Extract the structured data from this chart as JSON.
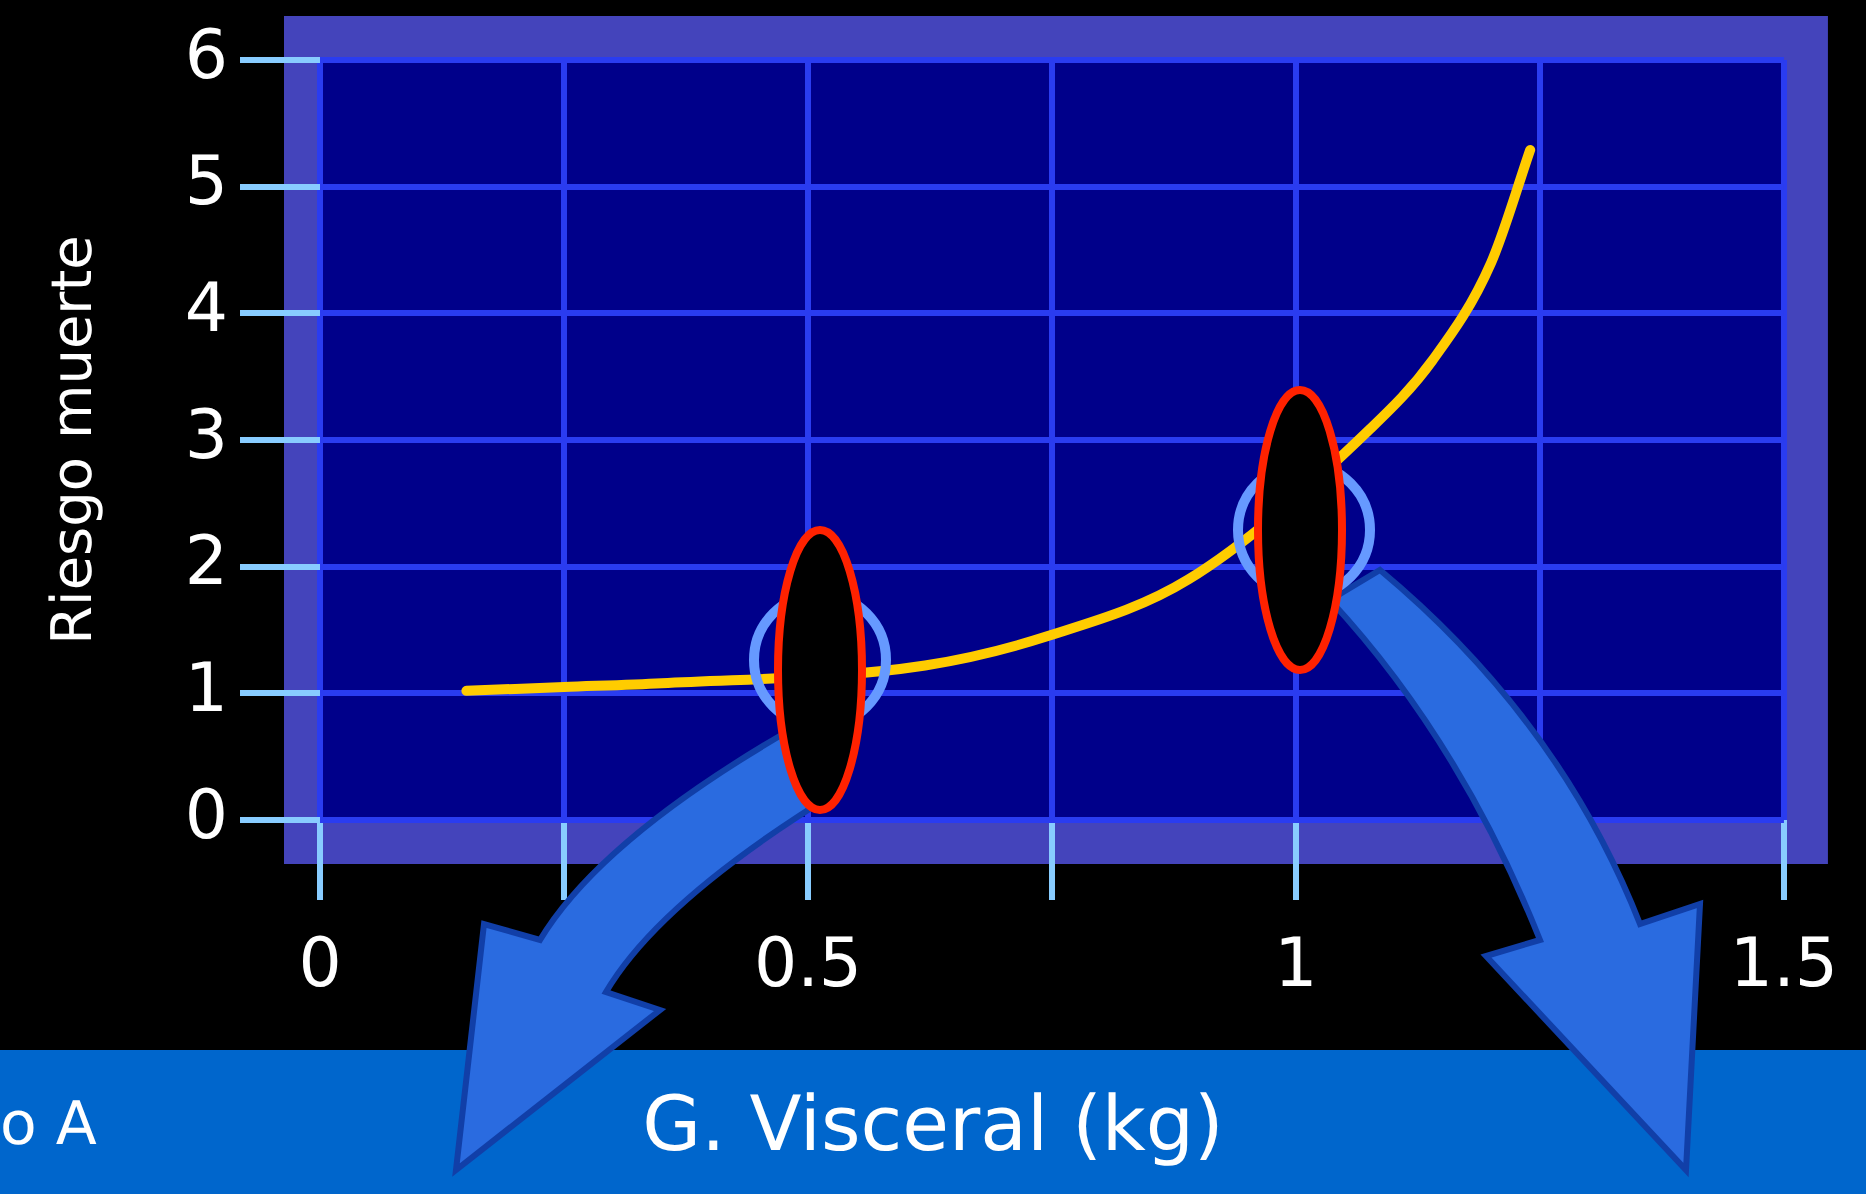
{
  "chart_data": {
    "type": "line",
    "xlabel": "G. Visceral (kg)",
    "ylabel": "Riesgo muerte",
    "annotations": [
      "o A"
    ],
    "x": [
      0.15,
      0.25,
      0.35,
      0.62,
      0.745,
      0.89,
      1.075,
      1.14,
      1.2,
      1.24
    ],
    "series": [
      {
        "color": "#ffcc00",
        "values": [
          1.02,
          1.05,
          1.08,
          1.22,
          1.45,
          1.9,
          3.08,
          3.63,
          4.4,
          5.29
        ]
      }
    ],
    "xlim": [
      0,
      1.5
    ],
    "xticks": [
      0,
      {
        "value": 0.25,
        "label": null
      },
      0.5,
      {
        "value": 0.75,
        "label": null
      },
      1,
      {
        "value": 1.25,
        "label": null
      },
      1.5
    ],
    "ylim": [
      0,
      6
    ],
    "yticks": [
      0,
      1,
      2,
      3,
      4,
      5,
      6
    ],
    "grid": true,
    "legend": false
  }
}
